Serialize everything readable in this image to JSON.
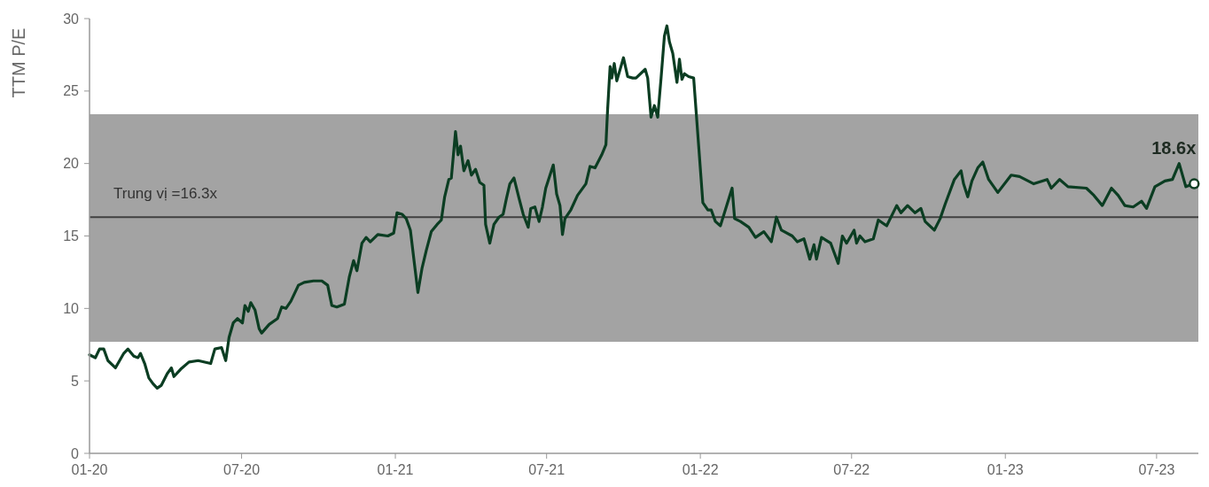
{
  "chart_data": {
    "type": "line",
    "ylabel": "TTM P/E",
    "xlim": [
      "2020-01-01",
      "2023-08-20"
    ],
    "xticks": [
      {
        "value": "2020-01-01",
        "label": "01-20"
      },
      {
        "value": "2020-07-01",
        "label": "07-20"
      },
      {
        "value": "2021-01-01",
        "label": "01-21"
      },
      {
        "value": "2021-07-01",
        "label": "07-21"
      },
      {
        "value": "2022-01-01",
        "label": "01-22"
      },
      {
        "value": "2022-07-01",
        "label": "07-22"
      },
      {
        "value": "2023-01-01",
        "label": "01-23"
      },
      {
        "value": "2023-07-01",
        "label": "07-23"
      }
    ],
    "ylim": [
      0,
      30
    ],
    "yticks": [
      0,
      5,
      10,
      15,
      20,
      25,
      30
    ],
    "bands": [
      {
        "axis": "y",
        "from": 7.7,
        "to": 23.4,
        "color": "#a3a3a3"
      }
    ],
    "ref_lines": [
      {
        "axis": "y",
        "value": 16.3,
        "label": "Trung vị =16.3x",
        "color": "#404040"
      }
    ],
    "annotations": [
      {
        "text": "18.6x",
        "x": "2023-08-15",
        "y": 18.6
      }
    ],
    "series": [
      {
        "color": "#0b3d22",
        "x": [
          "2020-01-01",
          "2020-01-08",
          "2020-01-13",
          "2020-01-18",
          "2020-01-23",
          "2020-02-01",
          "2020-02-11",
          "2020-02-16",
          "2020-02-23",
          "2020-02-28",
          "2020-03-02",
          "2020-03-07",
          "2020-03-12",
          "2020-03-17",
          "2020-03-22",
          "2020-03-27",
          "2020-04-03",
          "2020-04-08",
          "2020-04-11",
          "2020-04-19",
          "2020-04-29",
          "2020-05-10",
          "2020-05-25",
          "2020-05-30",
          "2020-06-07",
          "2020-06-12",
          "2020-06-16",
          "2020-06-21",
          "2020-06-26",
          "2020-07-02",
          "2020-07-05",
          "2020-07-09",
          "2020-07-12",
          "2020-07-17",
          "2020-07-22",
          "2020-07-25",
          "2020-08-03",
          "2020-08-13",
          "2020-08-18",
          "2020-08-23",
          "2020-08-29",
          "2020-09-07",
          "2020-09-14",
          "2020-09-25",
          "2020-10-05",
          "2020-10-12",
          "2020-10-17",
          "2020-10-23",
          "2020-11-01",
          "2020-11-07",
          "2020-11-12",
          "2020-11-16",
          "2020-11-22",
          "2020-11-27",
          "2020-12-02",
          "2020-12-11",
          "2020-12-23",
          "2020-12-30",
          "2021-01-03",
          "2021-01-09",
          "2021-01-14",
          "2021-01-19",
          "2021-01-24",
          "2021-01-28",
          "2021-02-02",
          "2021-02-07",
          "2021-02-13",
          "2021-02-20",
          "2021-02-25",
          "2021-03-01",
          "2021-03-06",
          "2021-03-09",
          "2021-03-14",
          "2021-03-17",
          "2021-03-20",
          "2021-03-24",
          "2021-03-29",
          "2021-04-02",
          "2021-04-07",
          "2021-04-12",
          "2021-04-17",
          "2021-04-19",
          "2021-04-24",
          "2021-04-29",
          "2021-05-05",
          "2021-05-10",
          "2021-05-14",
          "2021-05-18",
          "2021-05-23",
          "2021-05-29",
          "2021-06-03",
          "2021-06-09",
          "2021-06-12",
          "2021-06-17",
          "2021-06-22",
          "2021-06-26",
          "2021-06-30",
          "2021-07-09",
          "2021-07-13",
          "2021-07-17",
          "2021-07-20",
          "2021-07-23",
          "2021-07-30",
          "2021-08-07",
          "2021-08-12",
          "2021-08-17",
          "2021-08-22",
          "2021-08-28",
          "2021-09-05",
          "2021-09-10",
          "2021-09-12",
          "2021-09-15",
          "2021-09-17",
          "2021-09-20",
          "2021-09-23",
          "2021-10-01",
          "2021-10-06",
          "2021-10-12",
          "2021-10-16",
          "2021-10-27",
          "2021-10-30",
          "2021-11-03",
          "2021-11-07",
          "2021-11-11",
          "2021-11-15",
          "2021-11-19",
          "2021-11-22",
          "2021-11-25",
          "2021-11-29",
          "2021-12-04",
          "2021-12-07",
          "2021-12-10",
          "2021-12-13",
          "2021-12-18",
          "2021-12-24",
          "2022-01-04",
          "2022-01-10",
          "2022-01-14",
          "2022-01-19",
          "2022-01-25",
          "2022-02-08",
          "2022-02-11",
          "2022-02-18",
          "2022-02-28",
          "2022-03-08",
          "2022-03-18",
          "2022-03-27",
          "2022-04-02",
          "2022-04-08",
          "2022-04-21",
          "2022-04-27",
          "2022-05-05",
          "2022-05-12",
          "2022-05-17",
          "2022-05-20",
          "2022-05-26",
          "2022-06-06",
          "2022-06-15",
          "2022-06-20",
          "2022-06-25",
          "2022-07-04",
          "2022-07-07",
          "2022-07-11",
          "2022-07-17",
          "2022-07-27",
          "2022-08-02",
          "2022-08-12",
          "2022-08-24",
          "2022-08-29",
          "2022-09-06",
          "2022-09-15",
          "2022-09-22",
          "2022-09-27",
          "2022-10-08",
          "2022-10-15",
          "2022-10-21",
          "2022-11-01",
          "2022-11-09",
          "2022-11-12",
          "2022-11-17",
          "2022-11-22",
          "2022-11-29",
          "2022-12-05",
          "2022-12-12",
          "2022-12-23",
          "2023-01-08",
          "2023-01-18",
          "2023-02-04",
          "2023-02-20",
          "2023-02-25",
          "2023-03-07",
          "2023-03-17",
          "2023-04-08",
          "2023-04-17",
          "2023-04-27",
          "2023-05-08",
          "2023-05-16",
          "2023-05-24",
          "2023-06-03",
          "2023-06-13",
          "2023-06-19",
          "2023-06-29",
          "2023-07-11",
          "2023-07-20",
          "2023-07-28",
          "2023-08-05",
          "2023-08-15"
        ],
        "values": [
          6.8,
          6.6,
          7.2,
          7.2,
          6.4,
          5.9,
          6.9,
          7.2,
          6.7,
          6.6,
          6.9,
          6.2,
          5.2,
          4.8,
          4.5,
          4.7,
          5.5,
          5.9,
          5.3,
          5.8,
          6.3,
          6.4,
          6.2,
          7.2,
          7.3,
          6.4,
          8.0,
          9.0,
          9.3,
          9.0,
          10.2,
          9.8,
          10.4,
          9.9,
          8.6,
          8.3,
          8.9,
          9.3,
          10.1,
          10.0,
          10.5,
          11.6,
          11.8,
          11.9,
          11.9,
          11.6,
          10.2,
          10.1,
          10.3,
          12.2,
          13.3,
          12.6,
          14.5,
          14.9,
          14.6,
          15.1,
          15.0,
          15.2,
          16.6,
          16.5,
          16.2,
          15.4,
          13.0,
          11.1,
          12.8,
          14.0,
          15.3,
          15.8,
          16.1,
          17.7,
          18.9,
          19.0,
          22.2,
          20.6,
          21.2,
          19.5,
          20.2,
          19.2,
          19.6,
          18.7,
          18.5,
          15.8,
          14.5,
          15.8,
          16.3,
          16.5,
          17.6,
          18.6,
          19.0,
          17.6,
          16.5,
          15.6,
          16.9,
          17.0,
          16.0,
          17.0,
          18.3,
          19.9,
          17.9,
          17.1,
          15.1,
          16.2,
          16.8,
          17.8,
          18.2,
          18.6,
          19.8,
          19.7,
          20.6,
          21.3,
          23.7,
          26.7,
          25.9,
          26.9,
          25.7,
          27.3,
          26.0,
          25.9,
          25.9,
          26.5,
          25.9,
          23.2,
          24.0,
          23.2,
          25.9,
          28.8,
          29.5,
          28.4,
          27.6,
          25.6,
          27.2,
          25.8,
          26.2,
          26.0,
          25.9,
          17.3,
          16.8,
          16.8,
          16.0,
          15.7,
          18.3,
          16.2,
          16.0,
          15.6,
          14.9,
          15.3,
          14.6,
          16.3,
          15.4,
          15.0,
          14.6,
          14.8,
          13.4,
          14.4,
          13.4,
          14.9,
          14.5,
          13.1,
          15.0,
          14.5,
          15.4,
          14.5,
          15.0,
          14.6,
          14.8,
          16.1,
          15.7,
          17.1,
          16.6,
          17.1,
          16.6,
          16.9,
          16.0,
          15.4,
          16.2,
          17.2,
          18.9,
          19.5,
          18.6,
          17.7,
          18.8,
          19.7,
          20.1,
          18.9,
          18.0,
          19.2,
          19.1,
          18.6,
          18.9,
          18.3,
          18.9,
          18.4,
          18.3,
          17.8,
          17.1,
          18.3,
          17.8,
          17.1,
          17.0,
          17.4,
          16.9,
          18.4,
          18.8,
          18.9,
          20.0,
          18.4,
          18.6
        ]
      }
    ]
  }
}
